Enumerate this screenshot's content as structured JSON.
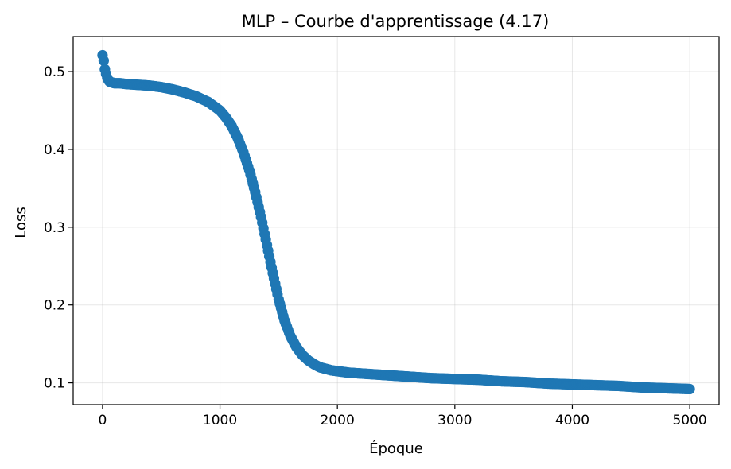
{
  "chart_data": {
    "type": "scatter",
    "title": "MLP – Courbe d'apprentissage (4.17)",
    "xlabel": "Époque",
    "ylabel": "Loss",
    "xlim": [
      -250,
      5250
    ],
    "ylim": [
      0.072,
      0.545
    ],
    "xticks": [
      0,
      1000,
      2000,
      3000,
      4000,
      5000
    ],
    "yticks": [
      0.1,
      0.2,
      0.3,
      0.4,
      0.5
    ],
    "xtick_labels": [
      "0",
      "1000",
      "2000",
      "3000",
      "4000",
      "5000"
    ],
    "ytick_labels": [
      "0.1",
      "0.2",
      "0.3",
      "0.4",
      "0.5"
    ],
    "grid": true,
    "color": "#1f77b4",
    "series": [
      {
        "x": [
          0,
          5,
          10,
          15,
          20,
          30,
          40,
          50,
          60,
          80,
          100,
          150,
          200,
          300,
          400,
          500,
          600,
          700,
          800,
          900,
          1000,
          1050,
          1100,
          1150,
          1200,
          1250,
          1300,
          1350,
          1400,
          1450,
          1500,
          1550,
          1600,
          1650,
          1700,
          1750,
          1800,
          1850,
          1900,
          1950,
          2000,
          2100,
          2200,
          2400,
          2600,
          2800,
          3000,
          3200,
          3400,
          3600,
          3800,
          4000,
          4200,
          4400,
          4600,
          4800,
          5000
        ],
        "y": [
          0.521,
          0.519,
          0.514,
          0.508,
          0.503,
          0.497,
          0.492,
          0.489,
          0.487,
          0.486,
          0.485,
          0.485,
          0.484,
          0.483,
          0.482,
          0.48,
          0.477,
          0.473,
          0.468,
          0.461,
          0.45,
          0.441,
          0.43,
          0.415,
          0.396,
          0.373,
          0.345,
          0.313,
          0.277,
          0.241,
          0.207,
          0.18,
          0.16,
          0.146,
          0.136,
          0.129,
          0.124,
          0.12,
          0.118,
          0.116,
          0.115,
          0.113,
          0.112,
          0.11,
          0.108,
          0.106,
          0.105,
          0.104,
          0.102,
          0.101,
          0.099,
          0.098,
          0.097,
          0.096,
          0.094,
          0.093,
          0.092
        ]
      }
    ]
  }
}
